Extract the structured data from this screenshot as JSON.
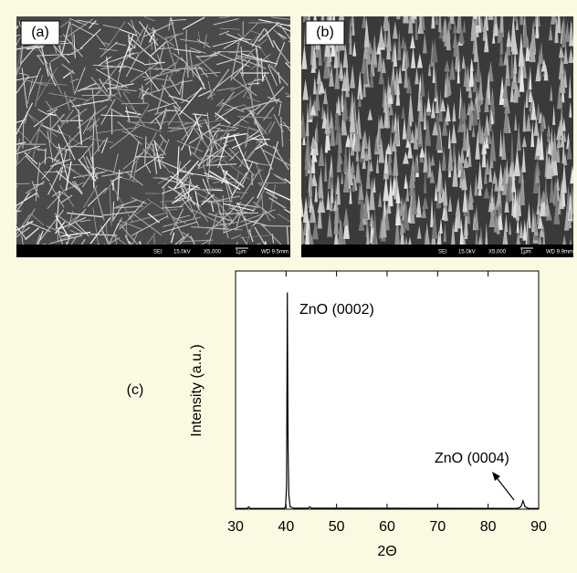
{
  "panels": [
    {
      "label": "(a)",
      "info": [
        "SEI",
        "15.0kV",
        "X5,000",
        "1μm",
        "WD 9.5mm"
      ]
    },
    {
      "label": "(b)",
      "info": [
        "SEI",
        "15.0kV",
        "X5,000",
        "1μm",
        "WD 9.9mm"
      ]
    }
  ],
  "chart_data": {
    "type": "line",
    "label": "(c)",
    "x_label": "2Θ",
    "y_label": "Intensity (a.u.)",
    "x": [
      30,
      32.3,
      32.6,
      32.9,
      39.6,
      39.9,
      40.1,
      40.25,
      40.4,
      40.55,
      40.8,
      41.5,
      44.4,
      44.7,
      45,
      85.8,
      86.5,
      86.9,
      87.3,
      88,
      90
    ],
    "values": [
      0.3,
      0.3,
      1.0,
      0.3,
      0.3,
      1.0,
      10,
      91,
      25,
      6,
      1.0,
      0.4,
      0.4,
      1.0,
      0.4,
      0.3,
      1.0,
      3.5,
      1.0,
      0.3,
      0.3
    ],
    "color": "#000000",
    "xlim": [
      30,
      90
    ],
    "ylim": [
      0,
      100
    ],
    "xticks": [
      30,
      40,
      50,
      60,
      70,
      80,
      90
    ],
    "annotations": [
      {
        "text": "ZnO (0002)"
      },
      {
        "text": "ZnO (0004)"
      }
    ]
  }
}
